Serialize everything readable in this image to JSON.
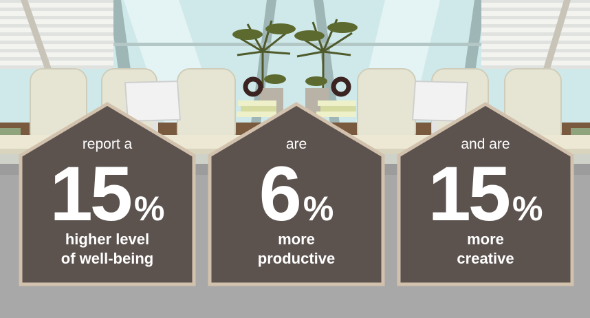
{
  "stats": [
    {
      "lead": "report a",
      "number": "15",
      "unit": "%",
      "line1": "higher level",
      "line2": "of well-being"
    },
    {
      "lead": "are",
      "number": "6",
      "unit": "%",
      "line1": "more",
      "line2": "productive"
    },
    {
      "lead": "and are",
      "number": "15",
      "unit": "%",
      "line1": "more",
      "line2": "creative"
    }
  ],
  "colors": {
    "house_fill": "#5c534f",
    "house_border": "#d2c2ad",
    "sky": "#cfe9ea",
    "floor": "#a8a8a8",
    "text": "#ffffff"
  },
  "icons": [
    "window-blinds",
    "chair",
    "monitor",
    "potted-palm",
    "book-stack",
    "sculpture"
  ]
}
